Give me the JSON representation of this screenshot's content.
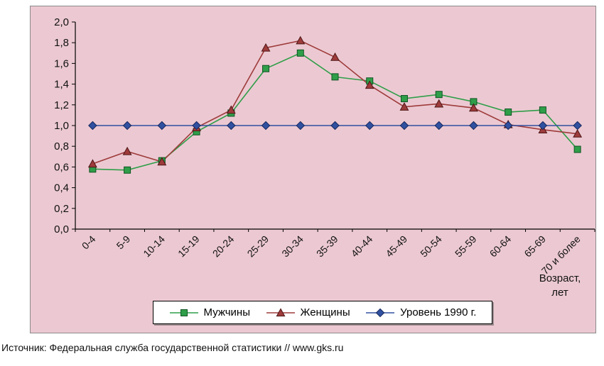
{
  "chart": {
    "background_color": "#ecc9d2",
    "xlabel_line1": "Возраст,",
    "xlabel_line2": "лет"
  },
  "chart_data": {
    "type": "line",
    "title": "",
    "xlabel": "Возраст, лет",
    "ylabel": "",
    "ylim": [
      0.0,
      2.0
    ],
    "ytick_step": 0.2,
    "y_tick_labels": [
      "2,0",
      "1,8",
      "1,6",
      "1,4",
      "1,2",
      "1,0",
      "0,8",
      "0,6",
      "0,4",
      "0,2",
      "0,0"
    ],
    "grid": false,
    "legend_position": "bottom",
    "categories": [
      "0-4",
      "5-9",
      "10-14",
      "15-19",
      "20-24",
      "25-29",
      "30-34",
      "35-39",
      "40-44",
      "45-49",
      "50-54",
      "55-59",
      "60-64",
      "65-69",
      "70 и более"
    ],
    "series": [
      {
        "name": "Мужчины",
        "marker": "square",
        "color": "#2f9e49",
        "edge": "#0f5423",
        "values": [
          0.58,
          0.57,
          0.66,
          0.94,
          1.12,
          1.55,
          1.7,
          1.47,
          1.43,
          1.26,
          1.3,
          1.23,
          1.13,
          1.15,
          0.77
        ]
      },
      {
        "name": "Женщины",
        "marker": "triangle",
        "color": "#9e3b3b",
        "edge": "#4d1616",
        "values": [
          0.63,
          0.75,
          0.65,
          0.98,
          1.15,
          1.75,
          1.82,
          1.66,
          1.39,
          1.18,
          1.21,
          1.17,
          1.01,
          0.96,
          0.92
        ]
      },
      {
        "name": "Уровень 1990 г.",
        "marker": "diamond",
        "color": "#3050a0",
        "edge": "#17295e",
        "values": [
          1.0,
          1.0,
          1.0,
          1.0,
          1.0,
          1.0,
          1.0,
          1.0,
          1.0,
          1.0,
          1.0,
          1.0,
          1.0,
          1.0,
          1.0
        ]
      }
    ]
  },
  "source": "Источник: Федеральная служба государственной статистики // www.gks.ru"
}
